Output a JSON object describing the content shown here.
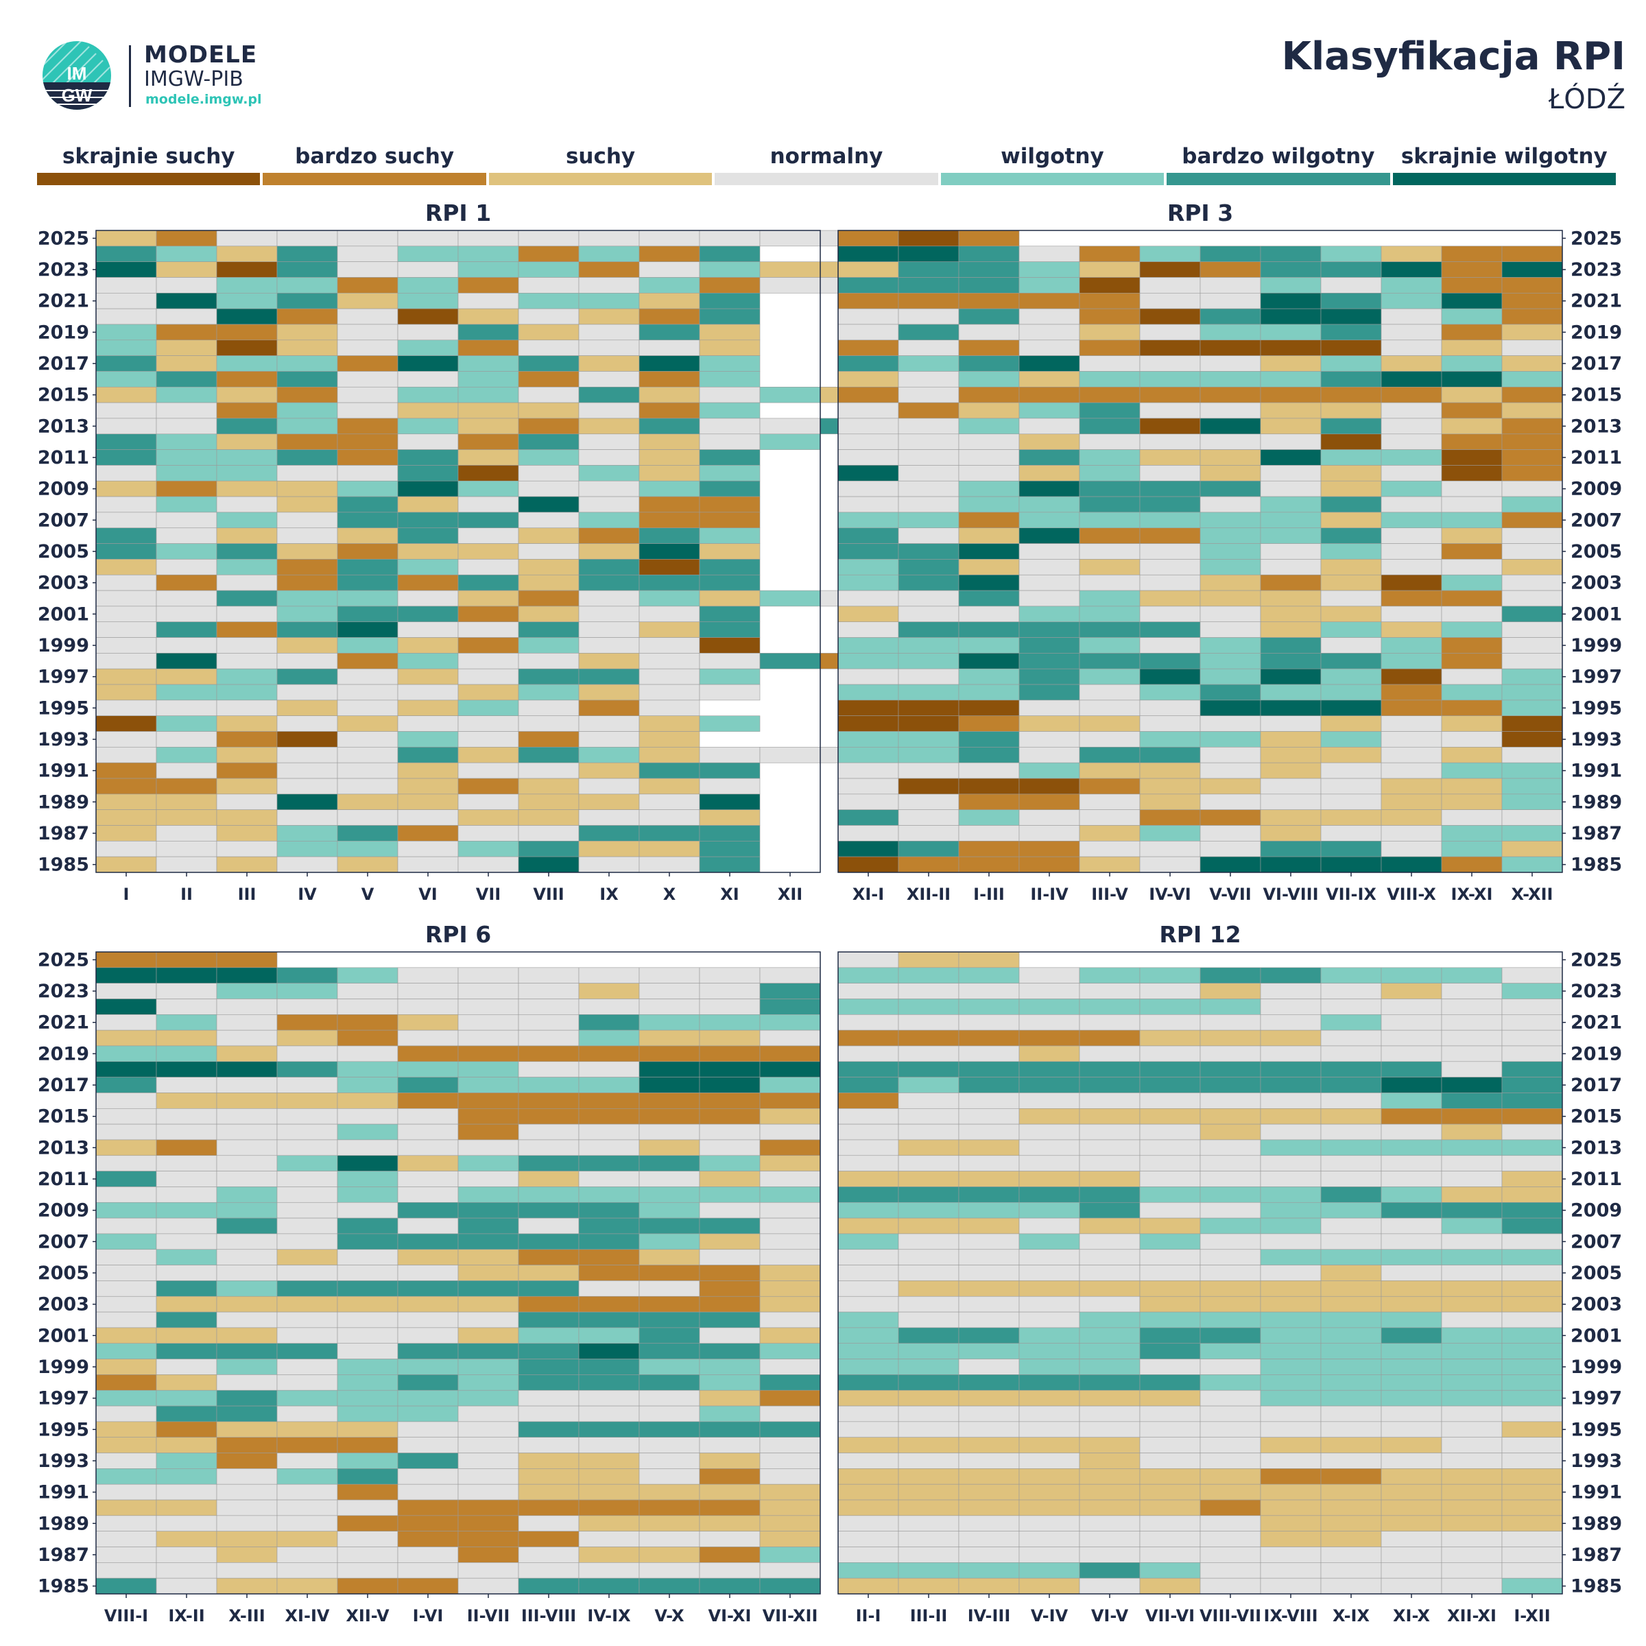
{
  "header": {
    "logo": {
      "brand_top": "MODELE",
      "brand_bottom": "IMGW-PIB",
      "url": "modele.imgw.pl",
      "mark_text": "IMGW"
    },
    "title": "Klasyfikacja RPI",
    "subtitle": "ŁÓDŹ"
  },
  "legend": [
    {
      "label": "skrajnie suchy",
      "color": "#8c510a"
    },
    {
      "label": "bardzo suchy",
      "color": "#bf812d"
    },
    {
      "label": "suchy",
      "color": "#dfc27d"
    },
    {
      "label": "normalny",
      "color": "#e2e2e2"
    },
    {
      "label": "wilgotny",
      "color": "#80cdc1"
    },
    {
      "label": "bardzo wilgotny",
      "color": "#35978f"
    },
    {
      "label": "skrajnie wilgotny",
      "color": "#01665e"
    }
  ],
  "chart_data": [
    {
      "type": "heatmap",
      "title": "RPI 1",
      "categories": [
        "I",
        "II",
        "III",
        "IV",
        "V",
        "VI",
        "VII",
        "VIII",
        "IX",
        "X",
        "XI",
        "XII"
      ],
      "y_tick_labels": [
        "2025",
        "2023",
        "2021",
        "2019",
        "2017",
        "2015",
        "2013",
        "2011",
        "2009",
        "2007",
        "2005",
        "2003",
        "2001",
        "1999",
        "1997",
        "1995",
        "1993",
        "1991",
        "1989",
        "1987",
        "1985"
      ],
      "years_range": [
        1985,
        2025
      ],
      "class_scale": "0 skrajnie suchy … 6 skrajnie wilgotny, rows listed from 2025 down to 1985, null = no data",
      "rows": [
        "21333333333333",
        "54253441415",
        "6205334413422",
        "33441413341332",
        "36452434425",
        "33613023215",
        "41123352352",
        "42023413332",
        "52441645264",
        "45153341314",
        "24213443523424",
        "33143222314",
        "3354142125335",
        "542113153234",
        "54451524325",
        "34433503424",
        "21224643345",
        "34325236311",
        "33435553411",
        "53232532154",
        "54521223262",
        "23415432505",
        "31315152555",
        "3354432134243",
        "33345512335",
        "35156335325",
        "33324214330",
        "3633143323351",
        "22453235534",
        "24433324233",
        "3332324313",
        "04232333324",
        "3310343132",
        "3423352542333",
        "13133233255",
        "11233212323",
        "22362232236",
        "22233322332",
        "23245133555",
        "33344345225",
        "23232336335"
      ]
    },
    {
      "type": "heatmap",
      "title": "RPI 3",
      "categories": [
        "XI-I",
        "XII-II",
        "I-III",
        "II-IV",
        "III-V",
        "IV-VI",
        "V-VII",
        "VI-VIII",
        "VII-IX",
        "VIII-X",
        "IX-XI",
        "X-XII"
      ],
      "y_tick_labels": [
        "2025",
        "2023",
        "2021",
        "2019",
        "2017",
        "2015",
        "2013",
        "2011",
        "2009",
        "2007",
        "2005",
        "2003",
        "2001",
        "1999",
        "1997",
        "1995",
        "1993",
        "1991",
        "1989",
        "1987",
        "1985"
      ],
      "years_range": [
        1985,
        2025
      ],
      "class_scale": "0 skrajnie suchy … 6 skrajnie wilgotny, rows listed from 2025 down to 1985, null = no data",
      "rows": [
        "101",
        "665314554211",
        "255420155616",
        "555403343411",
        "111113365461",
        "335310566341",
        "353323445312",
        "131310000323",
        "545633324242",
        "234244445664",
        "131111111121",
        "312453322312",
        "334350625321",
        "333233330311",
        "333542264401",
        "633243232301",
        "334655532433",
        "334455345334",
        "441444442441",
        "532611445323",
        "556333434313",
        "452323432332",
        "456333212043",
        "335342223113",
        "233443322335",
        "355555324243",
        "444543453413",
        "446555455413",
        "334546464034",
        "444534544144",
        "000333666114",
        "001223332320",
        "445334424330",
        "445355322323",
        "333422323344",
        "300012233224",
        "331132333224",
        "534331122233",
        "333324323344",
        "651133355342",
        "011123666614"
      ]
    },
    {
      "type": "heatmap",
      "title": "RPI 6",
      "categories": [
        "VIII-I",
        "IX-II",
        "X-III",
        "XI-IV",
        "XII-V",
        "I-VI",
        "II-VII",
        "III-VIII",
        "IV-IX",
        "V-X",
        "VI-XI",
        "VII-XII"
      ],
      "y_tick_labels": [
        "2025",
        "2023",
        "2021",
        "2019",
        "2017",
        "2015",
        "2013",
        "2011",
        "2009",
        "2007",
        "2005",
        "2003",
        "2001",
        "1999",
        "1997",
        "1995",
        "1993",
        "1991",
        "1989",
        "1987",
        "1985"
      ],
      "years_range": [
        1985,
        2025
      ],
      "class_scale": "0 skrajnie suchy … 6 skrajnie wilgotny, rows listed from 2025 down to 1985, null = no data",
      "rows": [
        "111",
        "666543333333",
        "334433332335",
        "633333333335",
        "343112335444",
        "223213334223",
        "442331111111",
        "666544433666",
        "533345444664",
        "322221111111",
        "333333111112",
        "333343133333",
        "213333333231",
        "333462455542",
        "533343323323",
        "334343444444",
        "444335555433",
        "335353535553",
        "433355555423",
        "343232211233",
        "333333221112",
        "354555553312",
        "322222211112",
        "353333355553",
        "222333244532",
        "455535556554",
        "234344455443",
        "123345455545",
        "445444433321",
        "355344333343",
        "212223355555",
        "221113333333",
        "341345322323",
        "443453322313",
        "333313322222",
        "223331111112",
        "333311132222",
        "322231113332",
        "332333132214",
        "333333333333",
        "532211355555"
      ]
    },
    {
      "type": "heatmap",
      "title": "RPI 12",
      "categories": [
        "II-I",
        "III-II",
        "IV-III",
        "V-IV",
        "VI-V",
        "VII-VI",
        "VIII-VII",
        "IX-VIII",
        "X-IX",
        "XI-X",
        "XII-XI",
        "I-XII"
      ],
      "y_tick_labels": [
        "2025",
        "2023",
        "2021",
        "2019",
        "2017",
        "2015",
        "2013",
        "2011",
        "2009",
        "2007",
        "2005",
        "2003",
        "2001",
        "1999",
        "1997",
        "1995",
        "1993",
        "1991",
        "1989",
        "1987",
        "1985"
      ],
      "years_range": [
        1985,
        2025
      ],
      "class_scale": "0 skrajnie suchy … 6 skrajnie wilgotny, rows listed from 2025 down to 1985, null = no data",
      "rows": [
        "322",
        "444344554443",
        "333333233234",
        "444444433333",
        "333333334333",
        "111112223333",
        "333233333333",
        "555555555535",
        "545555555665",
        "133333333455",
        "333222222111",
        "333333233323",
        "322333344444",
        "333333333333",
        "222223333332",
        "555554445422",
        "444453344555",
        "222322443345",
        "433434333333",
        "333333344444",
        "333333332333",
        "322222222222",
        "333332222222",
        "433344444433",
        "455445544544",
        "444445444444",
        "443443344444",
        "555555444444",
        "222222344444",
        "333333333333",
        "333333333332",
        "222223322233",
        "333323333333",
        "222222211222",
        "222222222222",
        "222222122222",
        "333333322222",
        "333333322333",
        "333333333333",
        "444454333333",
        "222232333334"
      ]
    }
  ]
}
